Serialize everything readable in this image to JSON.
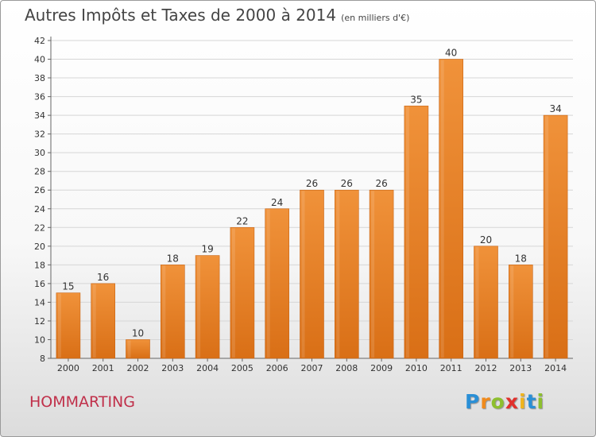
{
  "header": {
    "title": "Autres Impôts et Taxes de 2000 à 2014",
    "unit": "(en milliers d'€)"
  },
  "footer": {
    "commune": "HOMMARTING",
    "logo_letters": [
      "P",
      "r",
      "o",
      "x",
      "i",
      "t",
      "i"
    ],
    "logo_colors": [
      "#2a8fd6",
      "#f08a1c",
      "#8dbf2e",
      "#e0302c",
      "#f0b41c",
      "#2a8fd6",
      "#8dbf2e"
    ]
  },
  "chart_data": {
    "type": "bar",
    "title": "Autres Impôts et Taxes de 2000 à 2014",
    "xlabel": "",
    "ylabel": "",
    "categories": [
      "2000",
      "2001",
      "2002",
      "2003",
      "2004",
      "2005",
      "2006",
      "2007",
      "2008",
      "2009",
      "2010",
      "2011",
      "2012",
      "2013",
      "2014"
    ],
    "values": [
      15,
      16,
      10,
      18,
      19,
      22,
      24,
      26,
      26,
      26,
      35,
      40,
      20,
      18,
      34
    ],
    "ylim": [
      8,
      42
    ],
    "yticks": [
      8,
      10,
      12,
      14,
      16,
      18,
      20,
      22,
      24,
      26,
      28,
      30,
      32,
      34,
      36,
      38,
      40,
      42
    ],
    "grid": true,
    "bar_color": "#f0923a",
    "bar_color_dark": "#d96f16"
  }
}
